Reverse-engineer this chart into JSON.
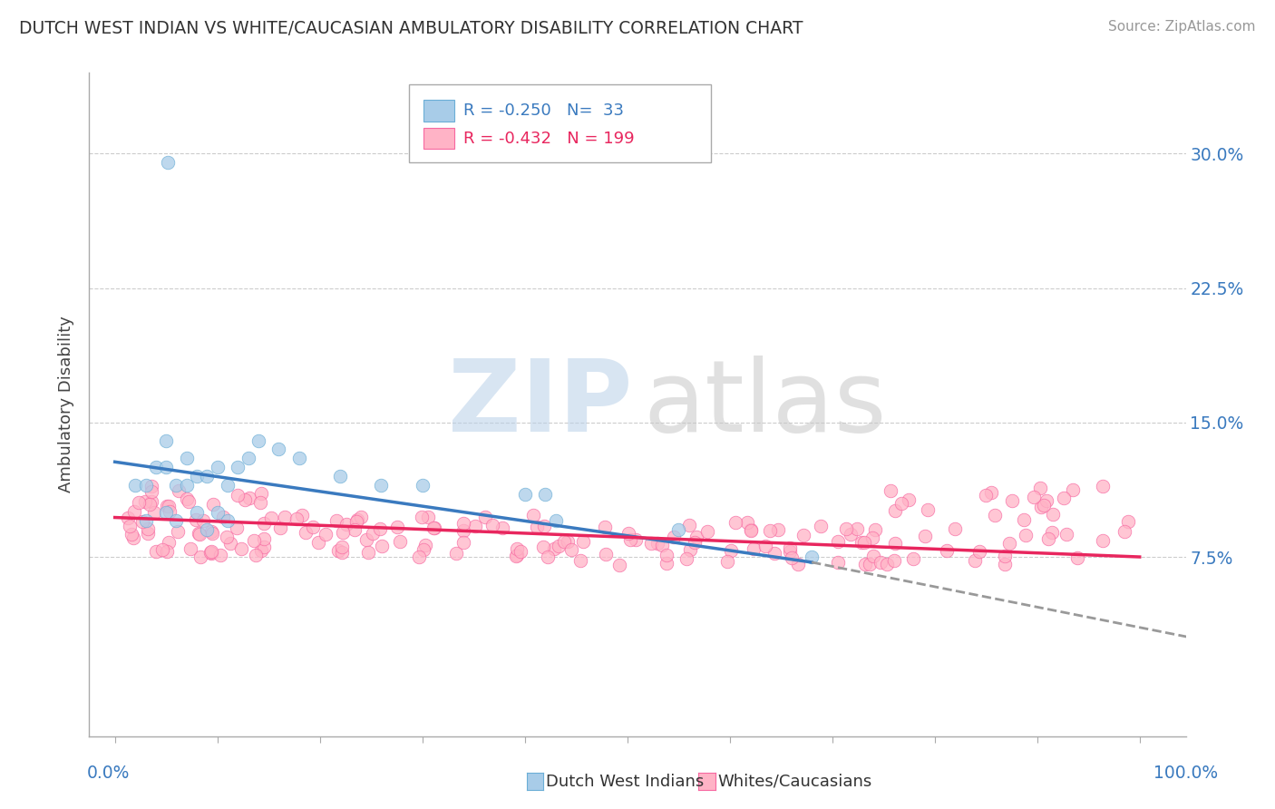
{
  "title": "DUTCH WEST INDIAN VS WHITE/CAUCASIAN AMBULATORY DISABILITY CORRELATION CHART",
  "source": "Source: ZipAtlas.com",
  "ylabel": "Ambulatory Disability",
  "legend_blue": {
    "label": "Dutch West Indians",
    "R": -0.25,
    "N": 33
  },
  "legend_pink": {
    "label": "Whites/Caucasians",
    "R": -0.432,
    "N": 199
  },
  "ytick_vals": [
    0.075,
    0.15,
    0.225,
    0.3
  ],
  "ytick_labels": [
    "7.5%",
    "15.0%",
    "22.5%",
    "30.0%"
  ],
  "xlim": [
    -0.025,
    1.045
  ],
  "ylim": [
    -0.025,
    0.345
  ],
  "grid_color": "#cccccc",
  "bg_color": "#ffffff",
  "blue_color": "#6baed6",
  "blue_fill": "#a8cce8",
  "blue_line_color": "#3a7abf",
  "pink_color": "#f768a1",
  "pink_fill": "#ffb3c6",
  "pink_line_color": "#e8265e",
  "dash_color": "#999999",
  "blue_line": [
    0.0,
    0.128,
    0.68,
    0.072
  ],
  "blue_dash": [
    0.68,
    0.072,
    1.05,
    0.03
  ],
  "pink_line": [
    0.0,
    0.097,
    1.0,
    0.075
  ]
}
